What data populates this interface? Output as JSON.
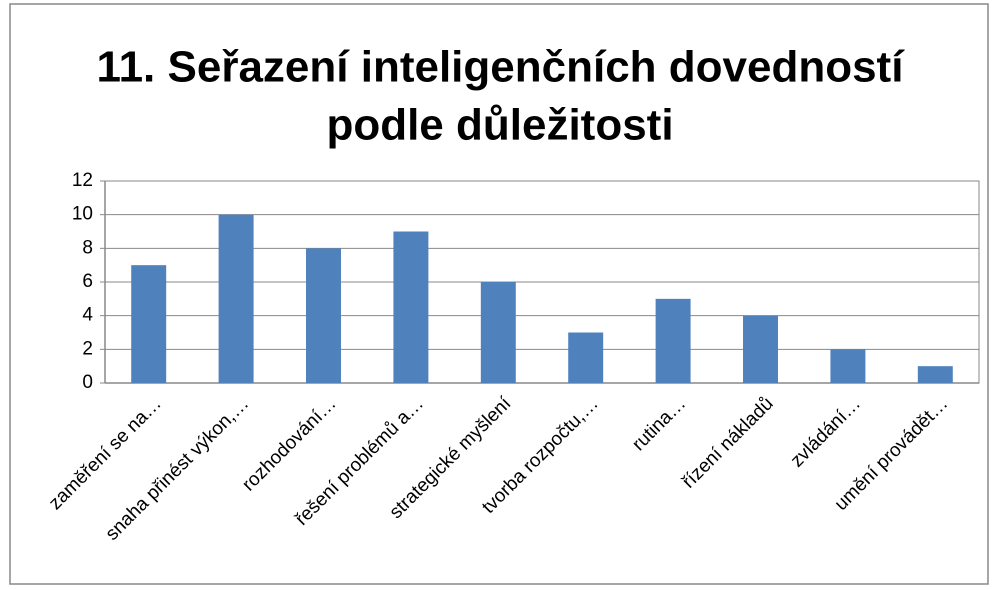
{
  "chart_data": {
    "type": "bar",
    "title": [
      "11. Seřazení inteligenčních dovedností",
      "podle důležitosti"
    ],
    "categories": [
      "zaměření se na…",
      "snaha přinést výkon,…",
      "rozhodování…",
      "řešení problémů a…",
      "strategické myšlení",
      "tvorba rozpočtu,…",
      "rutina…",
      "řízení nákladů",
      "zvládání…",
      "umění provádět…"
    ],
    "values": [
      7,
      10,
      8,
      9,
      6,
      3,
      5,
      4,
      2,
      1
    ],
    "color": "#4f81bd",
    "ylim": [
      0,
      12
    ],
    "yticks": [
      0,
      2,
      4,
      6,
      8,
      10,
      12
    ],
    "grid": true
  }
}
